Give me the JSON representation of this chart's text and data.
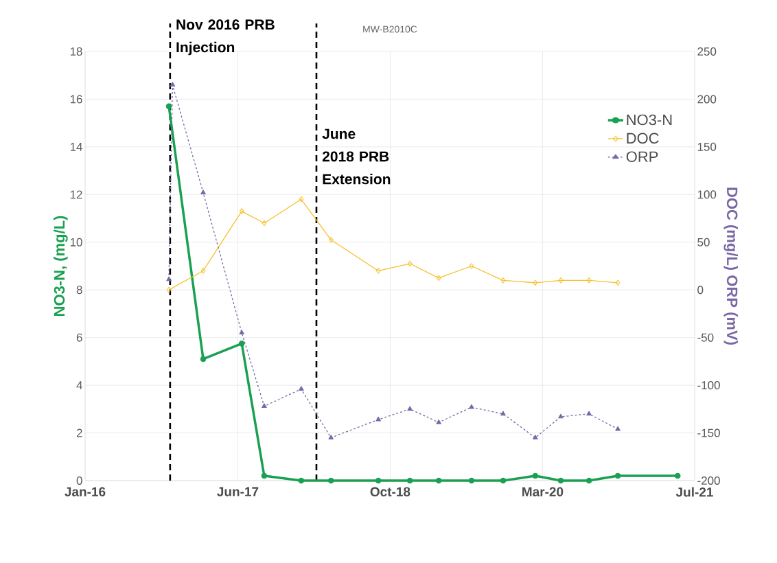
{
  "chart_data": {
    "type": "line",
    "title": "MW-B2010C",
    "ylabel": "NO3-N, (mg/L)",
    "y2label": "DOC (mg/L)   ORP (mV)",
    "xlim": [
      "2016-01-15",
      "2021-07-15"
    ],
    "xticks": [
      {
        "value": "2016-01-15",
        "label": "Jan-16"
      },
      {
        "value": "2017-06-01",
        "label": "Jun-17"
      },
      {
        "value": "2018-10-16",
        "label": "Oct-18"
      },
      {
        "value": "2020-03-01",
        "label": "Mar-20"
      },
      {
        "value": "2021-07-15",
        "label": "Jul-21"
      }
    ],
    "ylim": [
      0,
      18
    ],
    "yticks": [
      0,
      2,
      4,
      6,
      8,
      10,
      12,
      14,
      16,
      18
    ],
    "y2lim": [
      -200,
      250
    ],
    "y2ticks": [
      -200,
      -150,
      -100,
      -50,
      0,
      50,
      100,
      150,
      200,
      250
    ],
    "grid": true,
    "legend": "top right",
    "series": [
      {
        "name": "NO3-N",
        "color": "#1aa052",
        "marker": "circle",
        "line_style": "solid",
        "x": [
          "2016-10-17",
          "2017-02-07",
          "2017-06-14",
          "2017-08-27",
          "2017-12-27",
          "2018-04-04",
          "2018-09-07",
          "2018-12-20",
          "2019-03-25",
          "2019-07-11",
          "2019-10-23",
          "2020-02-06",
          "2020-04-30",
          "2020-08-01",
          "2020-11-04",
          "2021-05-20"
        ],
        "values": [
          15.7,
          5.1,
          5.75,
          0.2,
          0,
          0,
          0,
          0,
          0,
          0,
          0,
          0.2,
          0,
          0,
          0.2,
          0.2
        ]
      },
      {
        "name": "DOC",
        "color": "#f5c02a",
        "marker": "diamond",
        "line_style": "solid",
        "x": [
          "2016-10-17",
          "2017-02-07",
          "2017-06-14",
          "2017-08-27",
          "2017-12-27",
          "2018-04-04",
          "2018-09-07",
          "2018-12-20",
          "2019-03-25",
          "2019-07-11",
          "2019-10-23",
          "2020-02-06",
          "2020-04-30",
          "2020-08-01",
          "2020-11-04"
        ],
        "values": [
          8.0,
          8.8,
          11.3,
          10.8,
          11.8,
          10.1,
          8.8,
          9.1,
          8.5,
          9.0,
          8.4,
          8.3,
          8.4,
          8.4,
          8.3
        ]
      },
      {
        "name": "ORP",
        "color": "#7a68a6",
        "marker": "triangle",
        "line_style": "dashed",
        "axis": "y2",
        "x": [
          "2016-10-17",
          "2016-10-29",
          "2017-02-07",
          "2017-06-14",
          "2017-08-27",
          "2017-12-27",
          "2018-04-04",
          "2018-09-07",
          "2018-12-20",
          "2019-03-25",
          "2019-07-11",
          "2019-10-23",
          "2020-02-06",
          "2020-04-30",
          "2020-08-01",
          "2020-11-04"
        ],
        "values": [
          11,
          215,
          102,
          -45,
          -122,
          -104,
          -155,
          -136,
          -125,
          -139,
          -123,
          -130,
          -155,
          -133,
          -130,
          -146
        ]
      }
    ],
    "ref_lines": [
      {
        "axis": "x",
        "value": "2016-10-21",
        "label": "Nov 2016 PRB Injection",
        "color": "#000000",
        "line_style": "dashed"
      },
      {
        "axis": "x",
        "value": "2018-02-15",
        "label": "June 2018 PRB Extension",
        "color": "#000000",
        "line_style": "dashed"
      }
    ]
  }
}
